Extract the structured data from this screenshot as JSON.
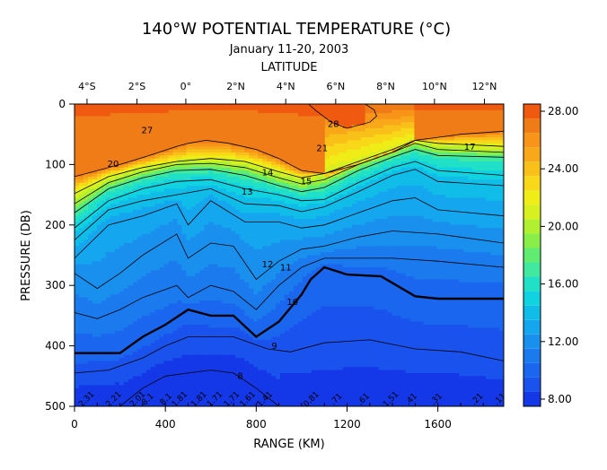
{
  "chart_data": {
    "type": "heatmap",
    "title": "140°W POTENTIAL TEMPERATURE (°C)",
    "subtitle": "January 11-20, 2003",
    "top_axis_label": "LATITUDE",
    "top_ticks": [
      {
        "label": "4°S",
        "km": 55
      },
      {
        "label": "2°S",
        "km": 275
      },
      {
        "label": "0°",
        "km": 490
      },
      {
        "label": "2°N",
        "km": 710
      },
      {
        "label": "4°N",
        "km": 930
      },
      {
        "label": "6°N",
        "km": 1150
      },
      {
        "label": "8°N",
        "km": 1370
      },
      {
        "label": "10°N",
        "km": 1585
      },
      {
        "label": "12°N",
        "km": 1805
      }
    ],
    "xlabel": "RANGE (KM)",
    "ylabel": "PRESSURE (DB)",
    "xlim": [
      0,
      1890
    ],
    "ylim": [
      0,
      500
    ],
    "y_inverted": true,
    "x_ticks": [
      0,
      400,
      800,
      1200,
      1600
    ],
    "y_ticks": [
      0,
      100,
      200,
      300,
      400,
      500
    ],
    "colorbar": {
      "range": [
        7.5,
        28.5
      ],
      "tick_labels": [
        "28.00",
        "24.00",
        "20.00",
        "16.00",
        "12.00",
        "8.00"
      ],
      "tick_values": [
        28,
        24,
        20,
        16,
        12,
        8
      ],
      "levels": [
        {
          "from": 7.5,
          "color": "#1438e8"
        },
        {
          "from": 8.5,
          "color": "#1a52ee"
        },
        {
          "from": 9.5,
          "color": "#1a66ee"
        },
        {
          "from": 10.5,
          "color": "#1a7aee"
        },
        {
          "from": 11.5,
          "color": "#1a90ee"
        },
        {
          "from": 12.5,
          "color": "#14a6ee"
        },
        {
          "from": 13.5,
          "color": "#10bce8"
        },
        {
          "from": 14.5,
          "color": "#10d2e0"
        },
        {
          "from": 15.5,
          "color": "#20e0c8"
        },
        {
          "from": 16.5,
          "color": "#40e8a0"
        },
        {
          "from": 17.5,
          "color": "#60ec70"
        },
        {
          "from": 18.5,
          "color": "#8aee48"
        },
        {
          "from": 19.5,
          "color": "#b0f030"
        },
        {
          "from": 20.5,
          "color": "#d8f020"
        },
        {
          "from": 21.5,
          "color": "#f0ec18"
        },
        {
          "from": 22.5,
          "color": "#f8d818"
        },
        {
          "from": 23.5,
          "color": "#f8c018"
        },
        {
          "from": 24.5,
          "color": "#f8a818"
        },
        {
          "from": 25.5,
          "color": "#f89418"
        },
        {
          "from": 26.5,
          "color": "#f07c18"
        },
        {
          "from": 27.5,
          "color": "#f05a10"
        }
      ]
    },
    "isotherms": [
      {
        "label": "28",
        "label_km": 1140,
        "label_db": 38,
        "x": [
          1030,
          1060,
          1130,
          1200,
          1300,
          1330,
          1320,
          1280
        ],
        "y": [
          0,
          10,
          30,
          40,
          30,
          20,
          10,
          0
        ]
      },
      {
        "label": "27",
        "label_km": 320,
        "label_db": 48,
        "x": [
          0,
          200,
          330,
          450,
          500,
          580,
          680,
          800,
          900,
          1000,
          1100,
          1250,
          1400,
          1500,
          1600,
          1700,
          1890
        ],
        "y": [
          120,
          100,
          85,
          70,
          65,
          60,
          65,
          75,
          90,
          110,
          115,
          100,
          80,
          60,
          55,
          50,
          45
        ]
      },
      {
        "label": "21",
        "label_km": 1090,
        "label_db": 78,
        "x": [
          0,
          150,
          300,
          450,
          600,
          750,
          900,
          1000,
          1100,
          1250,
          1400,
          1500,
          1600,
          1890
        ],
        "y": [
          148,
          120,
          105,
          95,
          90,
          95,
          112,
          122,
          115,
          95,
          75,
          60,
          65,
          70
        ]
      },
      {
        "label": "20",
        "label_km": 170,
        "label_db": 104,
        "x": [
          0,
          150,
          300,
          450,
          600,
          750,
          900,
          1000,
          1100,
          1250,
          1400,
          1500,
          1600,
          1890
        ],
        "y": [
          165,
          130,
          112,
          100,
          98,
          105,
          122,
          132,
          125,
          100,
          80,
          65,
          75,
          80
        ]
      },
      {
        "label": "17",
        "label_km": 1740,
        "label_db": 76,
        "x": [
          0,
          150,
          300,
          450,
          600,
          750,
          900,
          1000,
          1100,
          1250,
          1400,
          1500,
          1600,
          1890
        ],
        "y": [
          180,
          140,
          122,
          110,
          108,
          118,
          135,
          145,
          138,
          110,
          88,
          75,
          85,
          88
        ]
      },
      {
        "label": "15",
        "label_km": 1020,
        "label_db": 133,
        "x": [
          0,
          150,
          300,
          450,
          600,
          750,
          900,
          1000,
          1100,
          1250,
          1400,
          1500,
          1600,
          1890
        ],
        "y": [
          205,
          160,
          140,
          128,
          125,
          140,
          150,
          160,
          158,
          130,
          105,
          95,
          110,
          118
        ]
      },
      {
        "label": "14",
        "label_km": 850,
        "label_db": 118,
        "x": [
          0,
          150,
          300,
          450,
          600,
          750,
          900,
          1000,
          1100,
          1250,
          1400,
          1500,
          1600,
          1890
        ],
        "y": [
          225,
          175,
          160,
          150,
          140,
          165,
          168,
          178,
          170,
          145,
          118,
          108,
          128,
          135
        ]
      },
      {
        "label": "13",
        "label_km": 760,
        "label_db": 150,
        "x": [
          0,
          150,
          300,
          450,
          500,
          600,
          750,
          900,
          1000,
          1100,
          1250,
          1400,
          1500,
          1600,
          1890
        ],
        "y": [
          255,
          200,
          185,
          165,
          200,
          160,
          195,
          195,
          205,
          200,
          180,
          160,
          155,
          175,
          185
        ]
      },
      {
        "label": "12",
        "label_km": 850,
        "label_db": 270,
        "x": [
          0,
          100,
          200,
          300,
          450,
          500,
          600,
          700,
          800,
          900,
          1000,
          1100,
          1250,
          1400,
          1600,
          1890
        ],
        "y": [
          280,
          305,
          280,
          250,
          215,
          255,
          230,
          235,
          290,
          260,
          240,
          235,
          220,
          210,
          215,
          230
        ]
      },
      {
        "label": "11",
        "label_km": 930,
        "label_db": 275,
        "x": [
          0,
          100,
          200,
          300,
          450,
          500,
          600,
          700,
          800,
          900,
          1000,
          1100,
          1250,
          1400,
          1600,
          1890
        ],
        "y": [
          345,
          355,
          340,
          320,
          300,
          320,
          300,
          310,
          340,
          300,
          270,
          255,
          255,
          255,
          260,
          270
        ]
      },
      {
        "label": "10",
        "label_km": 960,
        "label_db": 332,
        "bold": true,
        "x": [
          0,
          200,
          300,
          400,
          500,
          600,
          700,
          800,
          900,
          1000,
          1040,
          1100,
          1200,
          1350,
          1500,
          1600,
          1890
        ],
        "y": [
          412,
          412,
          385,
          365,
          340,
          350,
          350,
          385,
          360,
          315,
          290,
          270,
          282,
          285,
          318,
          322,
          322
        ]
      },
      {
        "label": "9",
        "label_km": 880,
        "label_db": 405,
        "x": [
          0,
          150,
          300,
          400,
          500,
          700,
          850,
          950,
          1100,
          1300,
          1500,
          1700,
          1890
        ],
        "y": [
          445,
          440,
          420,
          400,
          385,
          385,
          405,
          410,
          395,
          390,
          405,
          410,
          425
        ]
      },
      {
        "label": "8",
        "label_km": 730,
        "label_db": 455,
        "x": [
          200,
          300,
          400,
          500,
          600,
          700,
          800,
          900
        ],
        "y": [
          500,
          470,
          450,
          445,
          440,
          445,
          470,
          500
        ]
      }
    ],
    "bottom_contour_labels": [
      {
        "label": "2.31",
        "km": 60
      },
      {
        "label": "2.21",
        "km": 180
      },
      {
        "label": "2.01",
        "km": 285
      },
      {
        "label": "8.1",
        "km": 330
      },
      {
        "label": "8.1",
        "km": 410
      },
      {
        "label": "1.81",
        "km": 470
      },
      {
        "label": "1.81",
        "km": 555
      },
      {
        "label": "1.71",
        "km": 625
      },
      {
        "label": "1.71",
        "km": 700
      },
      {
        "label": "1.61",
        "km": 770
      },
      {
        "label": "1.41",
        "km": 845
      },
      {
        "label": "0.81",
        "km": 1050
      },
      {
        "label": ".71",
        "km": 1160
      },
      {
        "label": ".61",
        "km": 1280
      },
      {
        "label": "1.51",
        "km": 1400
      },
      {
        "label": ".41",
        "km": 1490
      },
      {
        "label": ".31",
        "km": 1600
      },
      {
        "label": ".21",
        "km": 1780
      },
      {
        "label": ".11",
        "km": 1880
      }
    ]
  }
}
